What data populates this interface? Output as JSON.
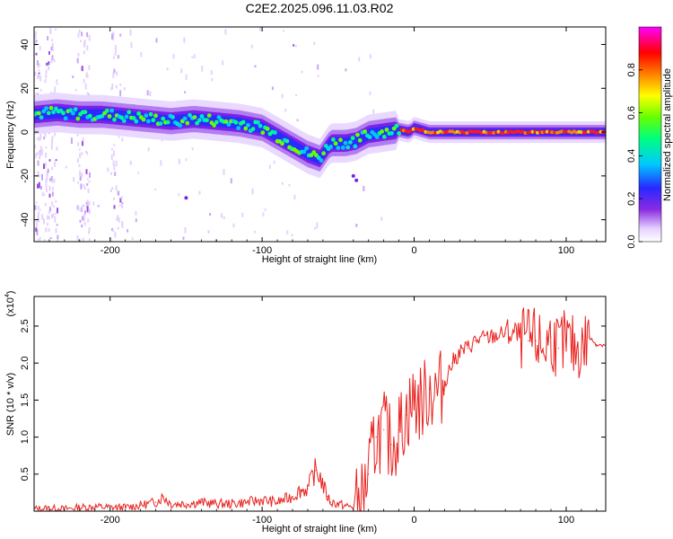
{
  "title": "C2E2.2025.096.11.03.R02",
  "chart_data": [
    {
      "type": "heatmap",
      "xlabel": "Height of straight line (km)",
      "ylabel": "Frequency (Hz)",
      "xlim": [
        -250,
        126
      ],
      "ylim": [
        -50,
        48
      ],
      "xticks": [
        -200,
        -100,
        0,
        100
      ],
      "yticks": [
        -40,
        -20,
        0,
        20,
        40
      ],
      "colorbar": {
        "label": "Normalized spectral amplitude",
        "range": [
          0,
          1
        ],
        "ticks": [
          "0.0",
          "0.2",
          "0.4",
          "0.6",
          "0.8"
        ],
        "colormap": [
          "#ffffff",
          "#e0c8ff",
          "#8a2be2",
          "#2020ff",
          "#00c8ff",
          "#00ff80",
          "#c8ff00",
          "#ff8000",
          "#ff0000",
          "#ff00ff"
        ]
      },
      "ridge": {
        "x": [
          -250,
          -235,
          -220,
          -205,
          -190,
          -175,
          -160,
          -145,
          -130,
          -115,
          -100,
          -90,
          -80,
          -70,
          -62,
          -55,
          -45,
          -38,
          -30,
          -20,
          -10,
          -3,
          0,
          5,
          10,
          20,
          40,
          60,
          80,
          100,
          126
        ],
        "y": [
          8,
          9,
          8,
          8,
          7,
          6,
          5,
          6,
          5,
          4,
          2,
          -2,
          -6,
          -10,
          -12,
          -5,
          -5,
          -4,
          -1,
          0,
          1,
          0,
          2,
          1,
          0,
          0,
          0,
          0,
          0,
          0,
          0
        ]
      },
      "outliers": [
        {
          "x": -38,
          "y": -22
        },
        {
          "x": -40,
          "y": -20
        },
        {
          "x": -150,
          "y": -30
        }
      ]
    },
    {
      "type": "line",
      "xlabel": "Height of straight line (km)",
      "ylabel": "SNR (10 * v/v)",
      "yscale_label": "(x10",
      "yscale_exp": "4",
      "xlim": [
        -250,
        126
      ],
      "ylim": [
        0,
        2.9
      ],
      "xticks": [
        -200,
        -100,
        0,
        100
      ],
      "yticks": [
        0.5,
        1.0,
        1.5,
        2.0,
        2.5
      ],
      "color": "#e8221e",
      "series": [
        {
          "x": [
            -250,
            -240,
            -230,
            -220,
            -210,
            -200,
            -190,
            -180,
            -170,
            -165,
            -160,
            -150,
            -140,
            -130,
            -120,
            -110,
            -100,
            -90,
            -80,
            -75,
            -70,
            -65,
            -62,
            -60,
            -57,
            -55,
            -50,
            -45,
            -40,
            -35,
            -30,
            -25,
            -20,
            -15,
            -10,
            -5,
            0,
            5,
            10,
            15,
            20,
            25,
            30,
            35,
            40,
            50,
            60,
            65,
            70,
            75,
            80,
            85,
            90,
            95,
            100,
            105,
            110,
            115,
            120,
            126
          ],
          "y": [
            0.03,
            0.04,
            0.03,
            0.05,
            0.06,
            0.05,
            0.05,
            0.08,
            0.12,
            0.2,
            0.1,
            0.1,
            0.12,
            0.1,
            0.1,
            0.12,
            0.15,
            0.12,
            0.2,
            0.28,
            0.3,
            0.55,
            0.48,
            0.35,
            0.2,
            0.12,
            0.1,
            0.07,
            0.05,
            0.1,
            0.5,
            1.0,
            1.1,
            0.9,
            1.1,
            1.3,
            1.5,
            1.45,
            1.65,
            1.6,
            1.75,
            2.0,
            2.15,
            2.2,
            2.3,
            2.35,
            2.4,
            2.4,
            2.35,
            2.3,
            2.3,
            2.2,
            2.35,
            2.2,
            2.3,
            2.2,
            2.2,
            2.35,
            2.25,
            2.25
          ]
        }
      ]
    }
  ]
}
